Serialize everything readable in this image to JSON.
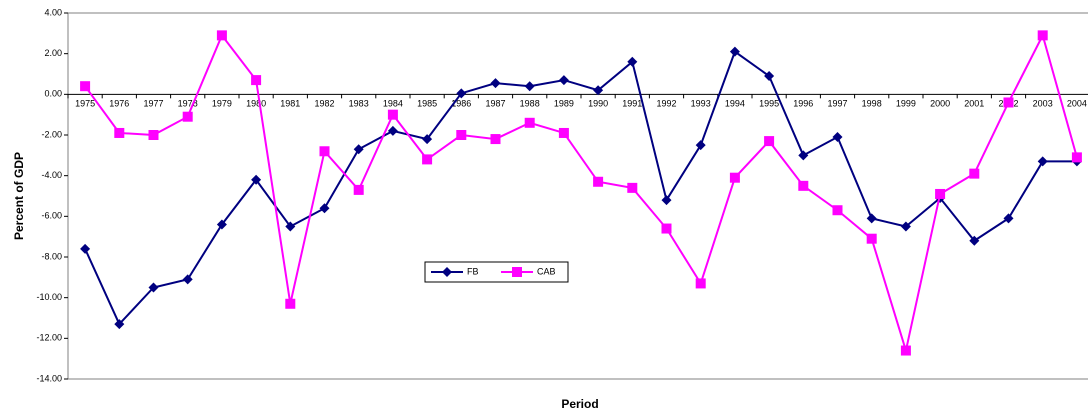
{
  "chart_data": {
    "type": "line",
    "x_label": "Period",
    "y_label": "Percent of GDP",
    "categories": [
      "1975",
      "1976",
      "1977",
      "1978",
      "1979",
      "1980",
      "1981",
      "1982",
      "1983",
      "1984",
      "1985",
      "1986",
      "1987",
      "1988",
      "1989",
      "1990",
      "1991",
      "1992",
      "1993",
      "1994",
      "1995",
      "1996",
      "1997",
      "1998",
      "1999",
      "2000",
      "2001",
      "2002",
      "2003",
      "2004"
    ],
    "series": [
      {
        "name": "FB",
        "color": "#000080",
        "marker": "diamond",
        "values": [
          -7.6,
          -11.3,
          -9.5,
          -9.1,
          -6.4,
          -4.2,
          -6.5,
          -5.6,
          -2.7,
          -1.8,
          -2.2,
          0.05,
          0.55,
          0.4,
          0.7,
          0.2,
          1.6,
          -5.2,
          -2.5,
          2.1,
          0.9,
          -3.0,
          -2.1,
          -6.1,
          -6.5,
          -5.1,
          -7.2,
          -6.1,
          -3.3,
          -3.3
        ]
      },
      {
        "name": "CAB",
        "color": "#ff00ff",
        "marker": "square",
        "values": [
          0.4,
          -1.9,
          -2.0,
          -1.1,
          2.9,
          0.7,
          -10.3,
          -2.8,
          -4.7,
          -1.0,
          -3.2,
          -2.0,
          -2.2,
          -1.4,
          -1.9,
          -4.3,
          -4.6,
          -6.6,
          -9.3,
          -4.1,
          -2.3,
          -4.5,
          -5.7,
          -7.1,
          -12.6,
          -4.9,
          -3.9,
          -0.4,
          2.9,
          -3.1
        ]
      }
    ],
    "ylim": [
      -14,
      4
    ],
    "yticks": [
      {
        "value": -14,
        "label": "-14.00"
      },
      {
        "value": -12,
        "label": "-12.00"
      },
      {
        "value": -10,
        "label": "-10.00"
      },
      {
        "value": -8,
        "label": "-8.00"
      },
      {
        "value": -6,
        "label": "-6.00"
      },
      {
        "value": -4,
        "label": "-4.00"
      },
      {
        "value": -2,
        "label": "-2.00"
      },
      {
        "value": 0,
        "label": "0.00"
      },
      {
        "value": 2,
        "label": "2.00"
      },
      {
        "value": 4,
        "label": "4.00"
      }
    ],
    "grid": false,
    "legend": "center"
  }
}
